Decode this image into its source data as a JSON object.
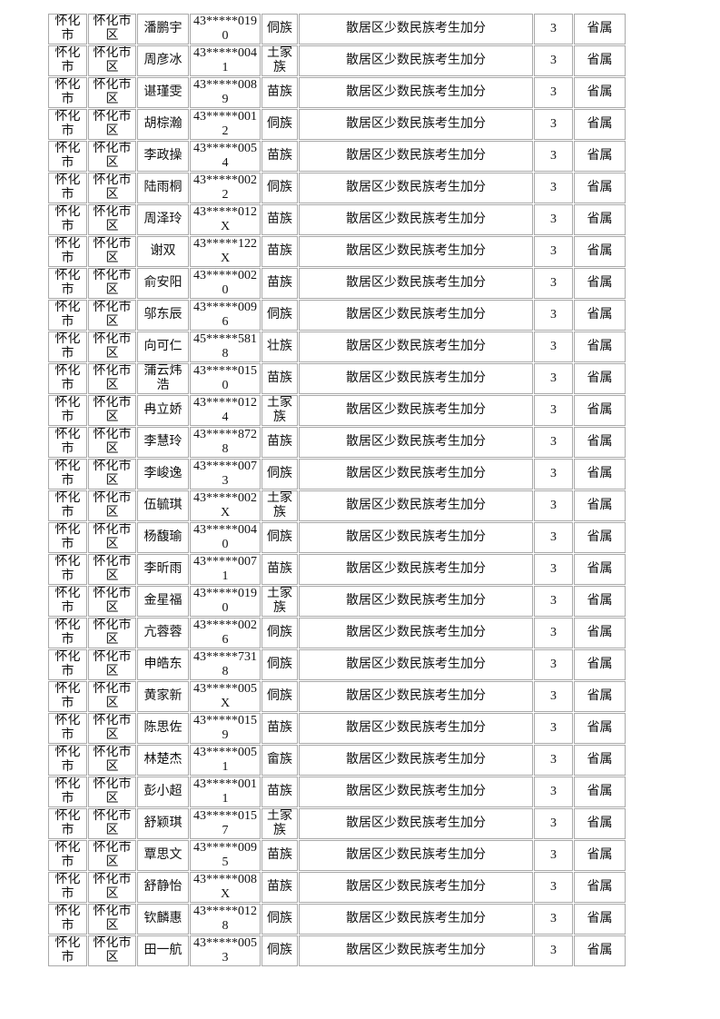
{
  "page": {
    "background_color": "#ffffff",
    "border_color": "#a9a9a9",
    "text_color": "#111111"
  },
  "table": {
    "common": {
      "city": "怀化\n市",
      "district": "怀化市\n区",
      "bonus_type": "散居区少数民族考生加分",
      "points": "3",
      "scope": "省属"
    },
    "rows": [
      {
        "name": "潘鹏宇",
        "id": "43*****019\n0",
        "ethnicity": "侗族"
      },
      {
        "name": "周彦冰",
        "id": "43*****004\n1",
        "ethnicity": "土家\n族"
      },
      {
        "name": "谌瑾雯",
        "id": "43*****008\n9",
        "ethnicity": "苗族"
      },
      {
        "name": "胡棕瀚",
        "id": "43*****001\n2",
        "ethnicity": "侗族"
      },
      {
        "name": "李政操",
        "id": "43*****005\n4",
        "ethnicity": "苗族"
      },
      {
        "name": "陆雨桐",
        "id": "43*****002\n2",
        "ethnicity": "侗族"
      },
      {
        "name": "周泽玲",
        "id": "43*****012\nX",
        "ethnicity": "苗族"
      },
      {
        "name": "谢双",
        "id": "43*****122\nX",
        "ethnicity": "苗族"
      },
      {
        "name": "俞安阳",
        "id": "43*****002\n0",
        "ethnicity": "苗族"
      },
      {
        "name": "邬东辰",
        "id": "43*****009\n6",
        "ethnicity": "侗族"
      },
      {
        "name": "向可仁",
        "id": "45*****581\n8",
        "ethnicity": "壮族"
      },
      {
        "name": "蒲云炜\n浩",
        "id": "43*****015\n0",
        "ethnicity": "苗族"
      },
      {
        "name": "冉立娇",
        "id": "43*****012\n4",
        "ethnicity": "土家\n族"
      },
      {
        "name": "李慧玲",
        "id": "43*****872\n8",
        "ethnicity": "苗族"
      },
      {
        "name": "李峻逸",
        "id": "43*****007\n3",
        "ethnicity": "侗族"
      },
      {
        "name": "伍毓琪",
        "id": "43*****002\nX",
        "ethnicity": "土家\n族"
      },
      {
        "name": "杨馥瑜",
        "id": "43*****004\n0",
        "ethnicity": "侗族"
      },
      {
        "name": "李昕雨",
        "id": "43*****007\n1",
        "ethnicity": "苗族"
      },
      {
        "name": "金星福",
        "id": "43*****019\n0",
        "ethnicity": "土家\n族"
      },
      {
        "name": "亢蓉蓉",
        "id": "43*****002\n6",
        "ethnicity": "侗族"
      },
      {
        "name": "申皓东",
        "id": "43*****731\n8",
        "ethnicity": "侗族"
      },
      {
        "name": "黄家新",
        "id": "43*****005\nX",
        "ethnicity": "侗族"
      },
      {
        "name": "陈思佐",
        "id": "43*****015\n9",
        "ethnicity": "苗族"
      },
      {
        "name": "林楚杰",
        "id": "43*****005\n1",
        "ethnicity": "畲族"
      },
      {
        "name": "彭小超",
        "id": "43*****001\n1",
        "ethnicity": "苗族"
      },
      {
        "name": "舒颖琪",
        "id": "43*****015\n7",
        "ethnicity": "土家\n族"
      },
      {
        "name": "覃思文",
        "id": "43*****009\n5",
        "ethnicity": "苗族"
      },
      {
        "name": "舒静怡",
        "id": "43*****008\nX",
        "ethnicity": "苗族"
      },
      {
        "name": "钦麟惠",
        "id": "43*****012\n8",
        "ethnicity": "侗族"
      },
      {
        "name": "田一航",
        "id": "43*****005\n3",
        "ethnicity": "侗族"
      }
    ]
  }
}
